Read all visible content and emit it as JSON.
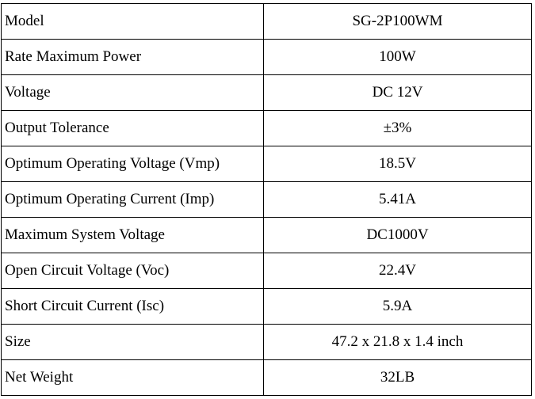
{
  "table": {
    "rows": [
      {
        "label": "Model",
        "value": "SG-2P100WM"
      },
      {
        "label": "Rate Maximum Power",
        "value": "100W"
      },
      {
        "label": "Voltage",
        "value": "DC 12V"
      },
      {
        "label": "Output Tolerance",
        "value": "±3%"
      },
      {
        "label": "Optimum Operating Voltage (Vmp)",
        "value": "18.5V"
      },
      {
        "label": "Optimum Operating Current (Imp)",
        "value": "5.41A"
      },
      {
        "label": "Maximum System Voltage",
        "value": "DC1000V"
      },
      {
        "label": "Open Circuit Voltage (Voc)",
        "value": "22.4V"
      },
      {
        "label": "Short Circuit Current (Isc)",
        "value": "5.9A"
      },
      {
        "label": "Size",
        "value": "47.2 x 21.8 x 1.4 inch"
      },
      {
        "label": "Net Weight",
        "value": "32LB"
      }
    ]
  }
}
